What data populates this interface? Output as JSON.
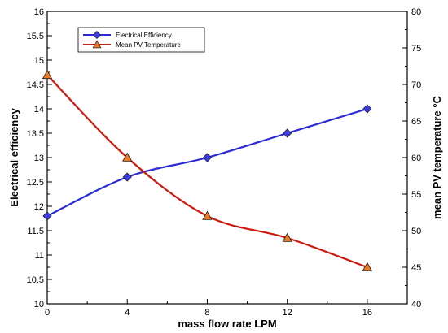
{
  "chart_data": {
    "type": "line",
    "title": "",
    "xlabel": "mass flow rate LPM",
    "ylabel_left": "Electrical efficiency",
    "ylabel_right": "mean PV  temperature °C",
    "xlim": [
      0,
      18
    ],
    "ylim_left": [
      10,
      16
    ],
    "ylim_right": [
      40,
      80
    ],
    "x_ticks": [
      "0",
      "4",
      "8",
      "12",
      "16"
    ],
    "y_left_ticks": [
      "10",
      "10.5",
      "11",
      "11.5",
      "12",
      "12.5",
      "13",
      "13.5",
      "14",
      "14.5",
      "15",
      "15.5",
      "16"
    ],
    "y_right_ticks": [
      "40",
      "45",
      "50",
      "55",
      "60",
      "65",
      "70",
      "75",
      "80"
    ],
    "grid": false,
    "legend_position": "top-left",
    "x": [
      0,
      4,
      8,
      12,
      16
    ],
    "series": [
      {
        "name": "Electrical Efficiency",
        "axis": "left",
        "marker": "diamond",
        "color": "#2b2bd6",
        "marker_color": "#3c3ce6",
        "values": [
          11.8,
          12.6,
          13.0,
          13.5,
          14.0
        ]
      },
      {
        "name": "Mean PV Temperature",
        "axis": "right",
        "marker": "triangle",
        "color": "#cc1a0f",
        "marker_color": "#ee7a22",
        "values": [
          71.3,
          60.0,
          52.0,
          49.0,
          45.0
        ]
      }
    ]
  }
}
